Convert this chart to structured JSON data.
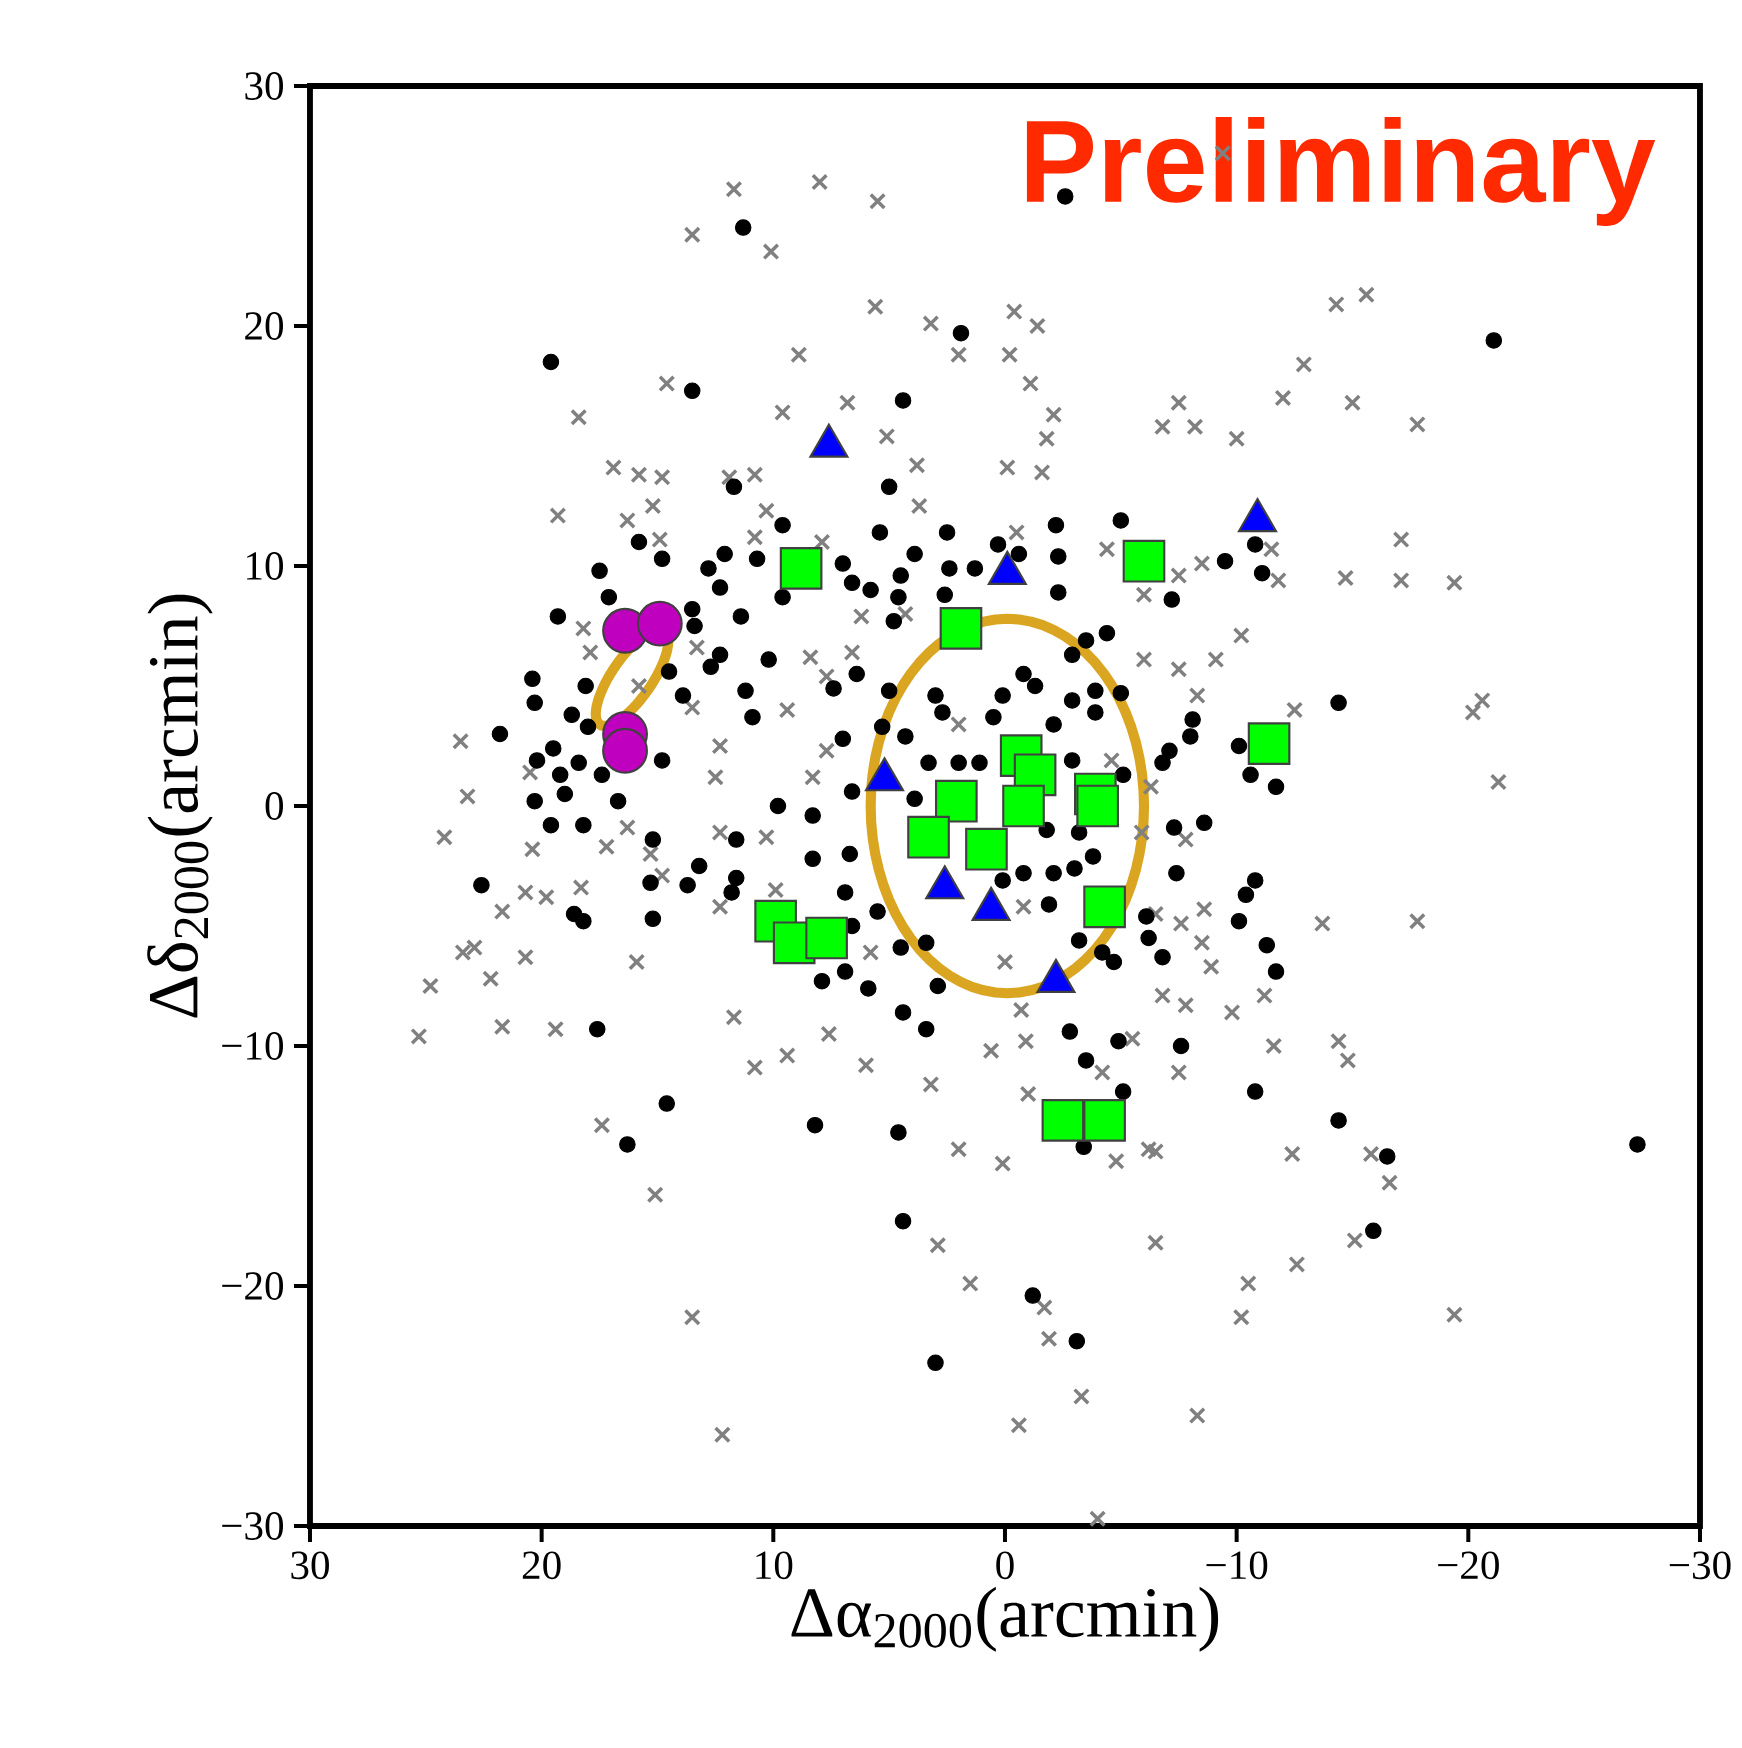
{
  "chart_data": {
    "type": "scatter",
    "xlabel": "Δα$_{2000}$(arcmin)",
    "ylabel": "Δδ$_{2000}$(arcmin)",
    "annotations": [
      "Preliminary"
    ],
    "xlim": [
      30,
      -30
    ],
    "ylim": [
      -30,
      30
    ],
    "xticks": [
      30,
      20,
      10,
      0,
      {
        "value": -10,
        "label": "−10"
      },
      {
        "value": -20,
        "label": "−20"
      },
      {
        "value": -30,
        "label": "−30"
      }
    ],
    "yticks": [
      {
        "value": -30,
        "label": "−30"
      },
      {
        "value": -20,
        "label": "−20"
      },
      {
        "value": -10,
        "label": "−10"
      },
      0,
      10,
      20,
      30
    ],
    "series": [
      {
        "type": "scatter",
        "marker": "cross",
        "color": "#808080",
        "x": [
          11.7,
          8.0,
          5.5,
          13.5,
          10.1,
          5.6,
          3.2,
          2.0,
          8.9,
          14.6,
          18.4,
          9.6,
          6.8,
          5.1,
          3.8,
          3.7,
          16.9,
          15.8,
          14.8,
          11.9,
          10.8,
          19.3,
          16.3,
          15.2,
          10.3,
          14.9,
          10.8,
          7.9,
          4.3,
          6.2,
          18.2,
          17.9,
          13.3,
          8.4,
          6.6,
          7.7,
          15.8,
          13.5,
          9.4,
          12.3,
          23.5,
          23.2,
          20.5,
          12.5,
          8.3,
          7.7,
          2.0,
          -9.4,
          -0.4,
          -1.4,
          -0.2,
          -1.1,
          -2.1,
          -1.8,
          -0.1,
          -1.6,
          -14.3,
          -15.6,
          -12.9,
          -12.0,
          -15.0,
          -7.5,
          -6.8,
          -8.2,
          -10.0,
          -17.8,
          -4.4,
          -6.0,
          -7.5,
          -8.5,
          -11.5,
          -11.8,
          -14.7,
          -17.1,
          -17.1,
          -19.4,
          -0.5,
          -6.0,
          -7.5,
          -9.1,
          -10.2,
          -8.3,
          -12.5,
          -20.2,
          -20.6,
          -21.3,
          -4.6,
          -6.3,
          24.2,
          20.4,
          17.2,
          16.3,
          15.3,
          12.3,
          10.3,
          14.8,
          20.7,
          19.8,
          21.7,
          18.3,
          12.3,
          9.9,
          23.4,
          22.9,
          24.8,
          22.2,
          20.7,
          15.9,
          25.3,
          21.7,
          19.4,
          11.7,
          10.8,
          9.4,
          7.6,
          6.0,
          3.2,
          2.0,
          17.4,
          15.1,
          13.5,
          12.2,
          2.9,
          1.5,
          5.8,
          0.6,
          0.1,
          -7.8,
          -5.9,
          -8.6,
          -7.6,
          -6.5,
          -8.5,
          -8.9,
          -6.8,
          -7.8,
          -9.8,
          -11.2,
          -13.7,
          -17.8,
          -0.8,
          0.0,
          -0.7,
          -0.9,
          -5.5,
          -4.2,
          -7.5,
          -11.6,
          -14.4,
          -14.8,
          -1.0,
          -4.8,
          -6.2,
          -6.5,
          -12.4,
          -15.8,
          -16.6,
          -6.5,
          -12.6,
          -15.1,
          -10.5,
          -10.2,
          -19.4,
          -1.7,
          -1.9,
          -3.3,
          -0.6,
          -8.3,
          -4.0
        ],
        "values": [
          25.7,
          26.0,
          25.2,
          23.8,
          23.1,
          20.8,
          20.1,
          18.8,
          18.8,
          17.6,
          16.2,
          16.4,
          16.8,
          15.4,
          14.2,
          12.5,
          14.1,
          13.8,
          13.7,
          13.7,
          13.8,
          12.1,
          11.9,
          12.5,
          12.3,
          11.1,
          11.2,
          11.0,
          8.0,
          7.9,
          7.4,
          6.4,
          6.6,
          6.2,
          6.4,
          5.4,
          5.0,
          4.1,
          4.0,
          2.5,
          2.7,
          0.4,
          1.4,
          1.2,
          1.2,
          2.3,
          3.4,
          27.2,
          20.6,
          20.0,
          18.8,
          17.6,
          16.3,
          15.3,
          14.1,
          13.9,
          20.9,
          21.3,
          18.4,
          17.0,
          16.8,
          16.8,
          15.8,
          15.8,
          15.3,
          15.9,
          10.7,
          8.8,
          9.6,
          10.1,
          10.7,
          9.4,
          9.5,
          11.1,
          9.4,
          9.3,
          11.4,
          6.1,
          5.7,
          6.1,
          7.1,
          4.6,
          4.0,
          3.9,
          4.4,
          1.0,
          1.9,
          0.8,
          -1.3,
          -1.8,
          -1.7,
          -0.9,
          -2.0,
          -1.1,
          -1.3,
          -2.9,
          -3.6,
          -3.8,
          -4.4,
          -3.4,
          -4.2,
          -3.5,
          -6.1,
          -5.9,
          -7.5,
          -7.2,
          -6.3,
          -6.5,
          -9.6,
          -9.2,
          -9.3,
          -8.8,
          -10.9,
          -10.4,
          -9.5,
          -10.8,
          -11.6,
          -14.3,
          -13.3,
          -16.2,
          -21.3,
          -26.2,
          -18.3,
          -19.9,
          -6.1,
          -10.2,
          -14.9,
          -1.4,
          -1.1,
          -4.3,
          -4.9,
          -4.5,
          -5.7,
          -6.7,
          -7.9,
          -8.3,
          -8.6,
          -7.9,
          -4.9,
          -4.8,
          -4.2,
          -6.5,
          -8.5,
          -9.8,
          -9.7,
          -11.1,
          -11.1,
          -10.0,
          -9.8,
          -10.6,
          -12.0,
          -14.8,
          -14.3,
          -14.4,
          -14.5,
          -14.5,
          -15.7,
          -18.2,
          -19.1,
          -18.1,
          -19.9,
          -21.3,
          -21.2,
          -20.9,
          -22.2,
          -24.6,
          -25.8,
          -25.4,
          -29.7
        ]
      },
      {
        "type": "scatter",
        "marker": "circle",
        "color": "#000000",
        "x": [
          11.3,
          19.6,
          13.5,
          1.9,
          4.4,
          11.7,
          5.0,
          9.6,
          15.8,
          14.8,
          12.1,
          10.7,
          12.8,
          5.4,
          2.5,
          0.3,
          7.0,
          3.9,
          4.5,
          2.4,
          1.3,
          17.5,
          12.3,
          9.6,
          5.8,
          6.6,
          4.6,
          2.6,
          19.3,
          17.1,
          13.5,
          13.4,
          11.4,
          4.8,
          10.2,
          12.3,
          12.7,
          7.4,
          6.4,
          5.0,
          11.2,
          10.9,
          13.9,
          14.5,
          20.4,
          18.1,
          20.3,
          18.7,
          18.0,
          21.8,
          19.5,
          20.2,
          18.4,
          19.2,
          14.8,
          17.4,
          7.0,
          5.3,
          4.3,
          3.0,
          2.7,
          3.3,
          2.0,
          1.1,
          0.5,
          9.8,
          6.6,
          3.9,
          20.3,
          19.0,
          19.6,
          18.2,
          16.7,
          15.2,
          22.6,
          18.6,
          18.2,
          15.3,
          15.2,
          13.7,
          13.2,
          11.6,
          11.6,
          11.8,
          8.3,
          8.3,
          6.7,
          6.9,
          6.6,
          7.9,
          6.9,
          5.9,
          5.5,
          4.5,
          2.9,
          3.4,
          4.4,
          3.4,
          17.6,
          14.6,
          16.3,
          8.2,
          4.6,
          4.4,
          3.0,
          -2.6,
          -21.1,
          -5.0,
          -2.2,
          -2.3,
          -2.3,
          -0.6,
          -7.2,
          -9.5,
          -10.8,
          -11.1,
          -4.4,
          -3.5,
          -2.9,
          -0.8,
          -1.3,
          -3.9,
          -5.0,
          -3.9,
          -2.9,
          -2.1,
          0.1,
          -8.1,
          -8.0,
          -14.4,
          -10.1,
          -10.6,
          -11.7,
          -7.1,
          -6.8,
          -2.9,
          -5.1,
          -7.3,
          -8.6,
          -3.2,
          -1.8,
          -3.8,
          -3.0,
          -2.1,
          -0.8,
          0.1,
          -1.9,
          -7.4,
          -10.8,
          -10.4,
          -10.1,
          -11.3,
          -11.7,
          -6.1,
          -6.2,
          -6.8,
          -4.2,
          -4.7,
          -3.2,
          -2.8,
          -4.9,
          -3.5,
          -7.6,
          -5.1,
          -10.8,
          -14.4,
          -16.5,
          -15.9,
          -27.3,
          -3.4,
          -1.2,
          -3.1
        ],
        "values": [
          24.1,
          18.5,
          17.3,
          19.7,
          16.9,
          13.3,
          13.3,
          11.7,
          11.0,
          10.3,
          10.5,
          10.3,
          9.9,
          11.4,
          11.4,
          10.9,
          10.1,
          10.5,
          9.6,
          9.9,
          9.9,
          9.8,
          9.1,
          8.7,
          9.0,
          9.3,
          8.7,
          8.8,
          7.9,
          8.7,
          8.2,
          7.5,
          7.9,
          7.7,
          6.1,
          6.3,
          5.8,
          4.9,
          5.5,
          4.8,
          4.8,
          3.7,
          4.6,
          5.6,
          5.3,
          5.0,
          4.3,
          3.8,
          3.3,
          3.0,
          2.4,
          1.9,
          1.8,
          1.3,
          1.9,
          1.3,
          2.8,
          3.3,
          2.9,
          4.6,
          3.9,
          1.8,
          1.8,
          1.8,
          3.7,
          0.0,
          0.6,
          0.3,
          0.2,
          0.5,
          -0.8,
          -0.8,
          0.2,
          -1.4,
          -3.3,
          -4.5,
          -4.8,
          -3.2,
          -4.7,
          -3.3,
          -2.5,
          -1.4,
          -3.0,
          -3.6,
          -0.4,
          -2.2,
          -2.0,
          -3.6,
          -5.0,
          -7.3,
          -6.9,
          -7.6,
          -4.4,
          -5.9,
          -7.5,
          -5.7,
          -8.6,
          -9.3,
          -9.3,
          -12.4,
          -14.1,
          -13.3,
          -13.6,
          -17.3,
          -23.2,
          25.4,
          19.4,
          11.9,
          11.7,
          10.4,
          8.9,
          10.5,
          8.6,
          10.2,
          10.9,
          9.7,
          7.2,
          6.9,
          6.3,
          5.5,
          5.0,
          4.8,
          4.7,
          3.9,
          4.4,
          3.4,
          4.6,
          3.6,
          2.9,
          4.3,
          2.5,
          1.3,
          0.8,
          2.3,
          1.8,
          1.9,
          1.3,
          -0.9,
          -0.7,
          -1.1,
          -1.0,
          -2.1,
          -2.6,
          -2.8,
          -2.8,
          -3.1,
          -4.1,
          -2.8,
          -3.1,
          -3.7,
          -4.8,
          -5.8,
          -6.9,
          -4.6,
          -5.5,
          -6.3,
          -6.1,
          -6.5,
          -5.6,
          -9.4,
          -9.8,
          -10.6,
          -10.0,
          -11.9,
          -11.9,
          -13.1,
          -14.6,
          -17.7,
          -14.1,
          -14.2,
          -20.4,
          -22.3
        ]
      },
      {
        "type": "scatter",
        "marker": "square",
        "color": "#00ff00",
        "x": [
          8.8,
          1.9,
          -6.0,
          -11.4,
          -0.7,
          -1.3,
          2.1,
          3.3,
          0.8,
          -0.8,
          -3.9,
          -4.0,
          -4.3,
          9.9,
          9.1,
          7.7,
          -2.5,
          -4.3
        ],
        "values": [
          9.9,
          7.4,
          10.2,
          2.6,
          2.1,
          1.3,
          0.2,
          -1.3,
          -1.8,
          0.0,
          0.5,
          0.0,
          -4.2,
          -4.8,
          -5.7,
          -5.5,
          -13.1,
          -13.1
        ]
      },
      {
        "type": "scatter",
        "marker": "triangle",
        "color": "#0000ff",
        "x": [
          7.6,
          -0.1,
          -10.9,
          5.2,
          2.6,
          0.6,
          -2.2
        ],
        "values": [
          15.0,
          9.7,
          11.9,
          1.1,
          -3.4,
          -4.3,
          -7.3
        ]
      },
      {
        "type": "scatter",
        "marker": "circle",
        "color": "#bf00bf",
        "x": [
          16.4,
          14.9,
          16.4,
          16.4
        ],
        "values": [
          7.3,
          7.6,
          3.0,
          2.3
        ]
      }
    ]
  }
}
